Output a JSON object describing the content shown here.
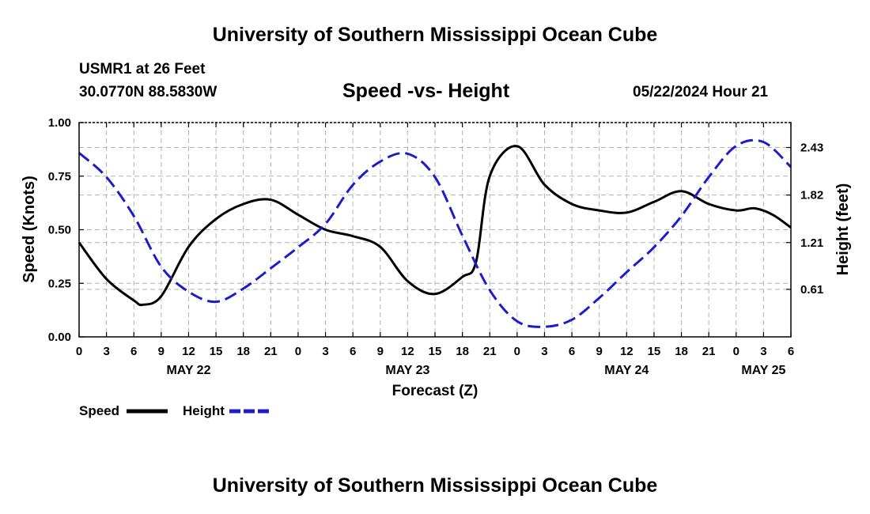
{
  "page": {
    "title_top": "University of Southern Mississippi Ocean Cube",
    "title_bottom": "University of Southern Mississippi Ocean Cube",
    "station": "USMR1 at 26 Feet",
    "location": "30.0770N  88.5830W",
    "datetime": "05/22/2024 Hour 21"
  },
  "colors": {
    "speed": "#000000",
    "height": "#1c1cc8",
    "grid": "#b4b4b4"
  },
  "chart_data": {
    "type": "line",
    "title": "Speed -vs- Height",
    "xlabel": "Forecast (Z)",
    "ylabel": "Speed (Knots)",
    "y2label": "Height (feet)",
    "xlim": [
      0,
      78
    ],
    "ylim": [
      0,
      1
    ],
    "y2lim": [
      0,
      2.75
    ],
    "x_tick_values": [
      0,
      3,
      6,
      9,
      12,
      15,
      18,
      21,
      24,
      27,
      30,
      33,
      36,
      39,
      42,
      45,
      48,
      51,
      54,
      57,
      60,
      63,
      66,
      69,
      72,
      75,
      78
    ],
    "x_tick_labels": [
      "0",
      "3",
      "6",
      "9",
      "12",
      "15",
      "18",
      "21",
      "0",
      "3",
      "6",
      "9",
      "12",
      "15",
      "18",
      "21",
      "0",
      "3",
      "6",
      "9",
      "12",
      "15",
      "18",
      "21",
      "0",
      "3",
      "6"
    ],
    "day_labels": [
      {
        "x": 12,
        "label": "MAY 22"
      },
      {
        "x": 36,
        "label": "MAY 23"
      },
      {
        "x": 60,
        "label": "MAY 24"
      },
      {
        "x": 75,
        "label": "MAY 25"
      }
    ],
    "y_ticks": [
      "0.00",
      "0.25",
      "0.50",
      "0.75",
      "1.00"
    ],
    "y_tick_values": [
      0,
      0.25,
      0.5,
      0.75,
      1.0
    ],
    "y2_ticks": [
      "0.61",
      "1.21",
      "1.82",
      "2.43"
    ],
    "y2_tick_values": [
      0.61,
      1.21,
      1.82,
      2.43
    ],
    "series": [
      {
        "name": "Speed",
        "axis": "left",
        "x": [
          0,
          3,
          6,
          7,
          9,
          12,
          15,
          18,
          21,
          24,
          27,
          30,
          33,
          36,
          39,
          42,
          43.5,
          45,
          48,
          51,
          54,
          57,
          60,
          63,
          66,
          69,
          72,
          74,
          76,
          78
        ],
        "values": [
          0.44,
          0.27,
          0.17,
          0.15,
          0.19,
          0.42,
          0.55,
          0.62,
          0.64,
          0.57,
          0.5,
          0.47,
          0.42,
          0.26,
          0.2,
          0.28,
          0.35,
          0.75,
          0.89,
          0.71,
          0.62,
          0.59,
          0.58,
          0.63,
          0.68,
          0.62,
          0.59,
          0.6,
          0.57,
          0.51
        ]
      },
      {
        "name": "Height",
        "axis": "right",
        "x": [
          0,
          3,
          6,
          9,
          12,
          15,
          18,
          21,
          24,
          27,
          30,
          33,
          36,
          39,
          42,
          45,
          48,
          51,
          54,
          57,
          60,
          63,
          66,
          69,
          72,
          75,
          78
        ],
        "values": [
          2.36,
          2.05,
          1.55,
          0.9,
          0.58,
          0.45,
          0.62,
          0.88,
          1.15,
          1.45,
          1.95,
          2.25,
          2.35,
          2.05,
          1.3,
          0.6,
          0.2,
          0.13,
          0.22,
          0.5,
          0.83,
          1.15,
          1.55,
          2.05,
          2.45,
          2.5,
          2.18
        ]
      }
    ],
    "legend": [
      {
        "label": "Speed",
        "style": "solid"
      },
      {
        "label": "Height",
        "style": "dashed"
      }
    ]
  }
}
